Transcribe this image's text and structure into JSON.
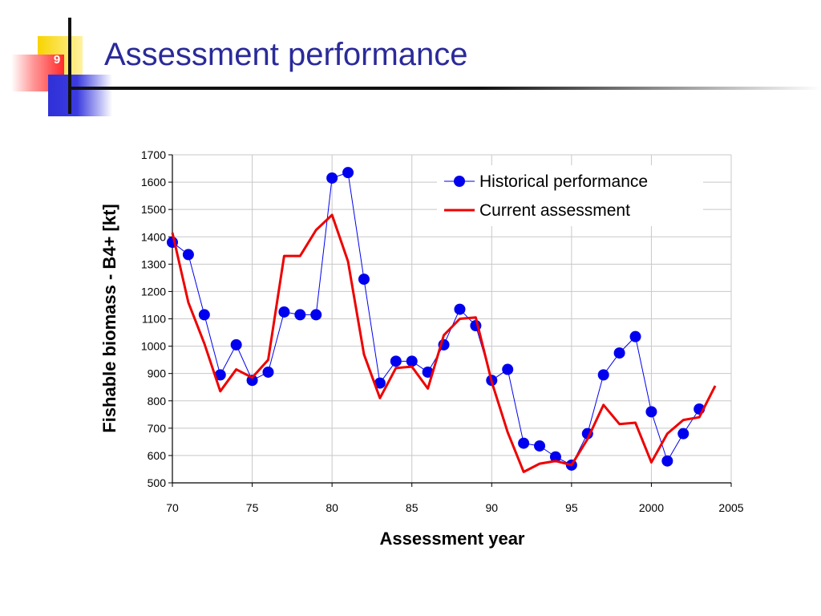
{
  "slide": {
    "title": "Assessment performance",
    "page_number": "9"
  },
  "colors": {
    "title": "#2a2a9a",
    "historical": "#0000ee",
    "current": "#ee0000"
  },
  "chart_data": {
    "type": "line",
    "title": "",
    "xlabel": "Assessment year",
    "ylabel": "Fishable biomass - B4+ [kt]",
    "xlim": [
      1970,
      2005
    ],
    "ylim": [
      500,
      1700
    ],
    "x_ticks": [
      1970,
      1975,
      1980,
      1985,
      1990,
      1995,
      2000,
      2005
    ],
    "x_tick_labels": [
      "70",
      "75",
      "80",
      "85",
      "90",
      "95",
      "2000",
      "2005"
    ],
    "y_ticks": [
      500,
      600,
      700,
      800,
      900,
      1000,
      1100,
      1200,
      1300,
      1400,
      1500,
      1600,
      1700
    ],
    "grid": true,
    "legend_position": "top-right",
    "series": [
      {
        "name": "Historical performance",
        "style": "line-with-markers",
        "color": "#0000ee",
        "x": [
          1970,
          1971,
          1972,
          1973,
          1974,
          1975,
          1976,
          1977,
          1978,
          1979,
          1980,
          1981,
          1982,
          1983,
          1984,
          1985,
          1986,
          1987,
          1988,
          1989,
          1990,
          1991,
          1992,
          1993,
          1994,
          1995,
          1996,
          1997,
          1998,
          1999,
          2000,
          2001,
          2002,
          2003
        ],
        "y": [
          1380,
          1335,
          1115,
          895,
          1005,
          875,
          905,
          1125,
          1115,
          1115,
          1615,
          1635,
          1245,
          865,
          945,
          945,
          905,
          1005,
          1135,
          1075,
          875,
          915,
          645,
          635,
          595,
          565,
          680,
          895,
          975,
          1035,
          760,
          580,
          680,
          770
        ]
      },
      {
        "name": "Current assessment",
        "style": "line",
        "color": "#ee0000",
        "x": [
          1970,
          1971,
          1972,
          1973,
          1974,
          1975,
          1976,
          1977,
          1978,
          1979,
          1980,
          1981,
          1982,
          1983,
          1984,
          1985,
          1986,
          1987,
          1988,
          1989,
          1990,
          1991,
          1992,
          1993,
          1994,
          1995,
          1996,
          1997,
          1998,
          1999,
          2000,
          2001,
          2002,
          2003,
          2004
        ],
        "y": [
          1415,
          1160,
          1010,
          835,
          915,
          885,
          950,
          1330,
          1330,
          1425,
          1480,
          1310,
          970,
          810,
          920,
          925,
          845,
          1040,
          1100,
          1105,
          870,
          685,
          540,
          570,
          580,
          565,
          660,
          785,
          715,
          720,
          575,
          680,
          730,
          740,
          855
        ]
      }
    ]
  }
}
